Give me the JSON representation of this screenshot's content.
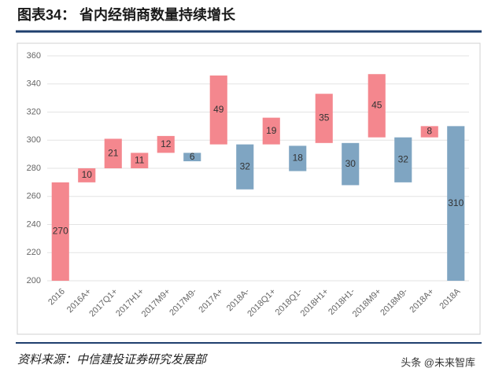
{
  "header": {
    "title": "图表34：  省内经销商数量持续增长"
  },
  "chart_data": {
    "type": "waterfall",
    "categories": [
      "2016",
      "2016A+",
      "2017Q1+",
      "2017H1+",
      "2017M9+",
      "2017M9-",
      "2017A+",
      "2018A-",
      "2018Q1+",
      "2018Q1-",
      "2018H1+",
      "2018H1-",
      "2018M9+",
      "2018M9-",
      "2018A+",
      "2018A"
    ],
    "values": [
      270,
      10,
      21,
      11,
      12,
      6,
      49,
      32,
      19,
      18,
      35,
      30,
      45,
      32,
      8,
      310
    ],
    "measure": [
      "total",
      "relative",
      "relative",
      "relative",
      "relative",
      "relative",
      "relative",
      "relative",
      "relative",
      "relative",
      "relative",
      "relative",
      "relative",
      "relative",
      "relative",
      "total"
    ],
    "bases": [
      null,
      270,
      280,
      280,
      291,
      285,
      297,
      265,
      297,
      278,
      298,
      268,
      302,
      270,
      302,
      null
    ],
    "colors": [
      "#f4878e",
      "#f4878e",
      "#f4878e",
      "#f4878e",
      "#f4878e",
      "#7fa5c2",
      "#f4878e",
      "#7fa5c2",
      "#f4878e",
      "#7fa5c2",
      "#f4878e",
      "#7fa5c2",
      "#f4878e",
      "#7fa5c2",
      "#f4878e",
      "#7fa5c2"
    ],
    "ylim": [
      200,
      360
    ],
    "yticks": [
      200,
      220,
      240,
      260,
      280,
      300,
      320,
      340,
      360
    ],
    "grid": true
  },
  "footer": {
    "source": "资料来源：中信建投证券研究发展部",
    "watermark": "头条 @未来智库"
  }
}
